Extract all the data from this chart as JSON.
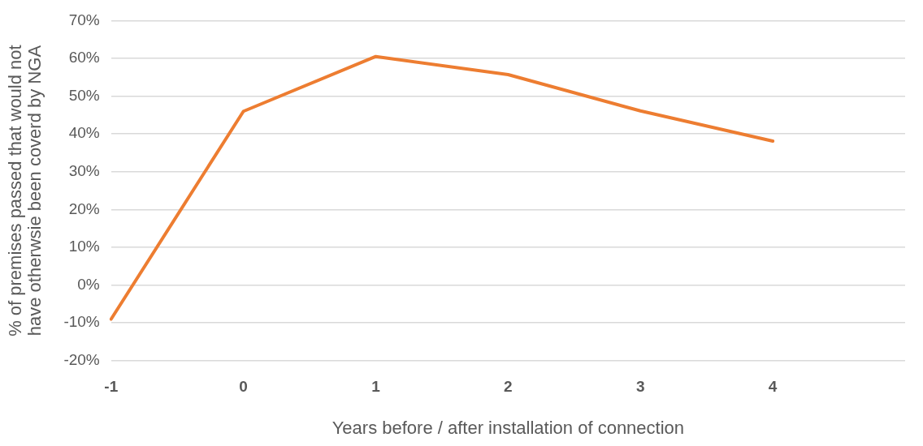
{
  "chart_data": {
    "type": "line",
    "xlabel": "Years before / after installation of connection",
    "ylabel": "% of premises passed that would not\nhave otherwsie been coverd by NGA",
    "categories": [
      "-1",
      "0",
      "1",
      "2",
      "3",
      "4",
      null
    ],
    "series": [
      {
        "color": "#ed7d31",
        "values": [
          -9,
          46,
          60.5,
          55.7,
          46.1,
          38.1,
          null
        ]
      }
    ],
    "ylim": [
      -20,
      70
    ],
    "yticks": [
      {
        "value": -20,
        "label": "-20%"
      },
      {
        "value": -10,
        "label": "-10%"
      },
      {
        "value": 0,
        "label": "0%"
      },
      {
        "value": 10,
        "label": "10%"
      },
      {
        "value": 20,
        "label": "20%"
      },
      {
        "value": 30,
        "label": "30%"
      },
      {
        "value": 40,
        "label": "40%"
      },
      {
        "value": 50,
        "label": "50%"
      },
      {
        "value": 60,
        "label": "60%"
      },
      {
        "value": 70,
        "label": "70%"
      }
    ],
    "grid": "y",
    "legend": false,
    "marker": "none",
    "line_style": "solid"
  }
}
